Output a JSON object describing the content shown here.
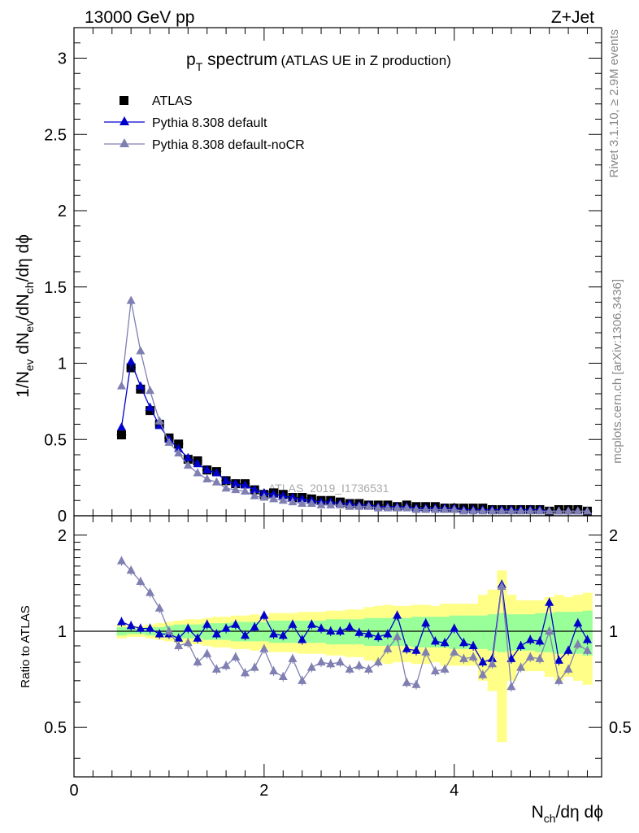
{
  "header": {
    "left": "13000 GeV pp",
    "right": "Z+Jet"
  },
  "side_labels": {
    "rivet": "Rivet 3.1.10, ≥ 2.9M events",
    "mcplots": "mcplots.cern.ch [arXiv:1306.3436]"
  },
  "watermark": "ATLAS_2019_I1736531",
  "colors": {
    "atlas": "#000000",
    "pythia_default": "#0000cc",
    "pythia_nocr": "#7f7fb2",
    "band_inner": "#99ff99",
    "band_outer": "#ffff88"
  },
  "chart_data": [
    {
      "type": "line",
      "title_main": "p",
      "title_sub": "T",
      "title_rest": " spectrum",
      "title_note": "(ATLAS UE in Z production)",
      "ylabel": {
        "p1": "1/N",
        "s1": "ev",
        "p2": " dN",
        "s2": "ev",
        "p3": "/dN",
        "s3": "ch",
        "p4": "/dη dϕ"
      },
      "xlim": [
        0,
        5.55
      ],
      "ylim": [
        0,
        3.2
      ],
      "yticks": [
        "0",
        "0.5",
        "1",
        "1.5",
        "2",
        "2.5",
        "3"
      ],
      "x": [
        0.5,
        0.6,
        0.7,
        0.8,
        0.9,
        1.0,
        1.1,
        1.2,
        1.3,
        1.4,
        1.5,
        1.6,
        1.7,
        1.8,
        1.9,
        2.0,
        2.1,
        2.2,
        2.3,
        2.4,
        2.5,
        2.6,
        2.7,
        2.8,
        2.9,
        3.0,
        3.1,
        3.2,
        3.3,
        3.4,
        3.5,
        3.6,
        3.7,
        3.8,
        3.9,
        4.0,
        4.1,
        4.2,
        4.3,
        4.4,
        4.5,
        4.6,
        4.7,
        4.8,
        4.9,
        5.0,
        5.1,
        5.2,
        5.3,
        5.4
      ],
      "series": [
        {
          "name": "ATLAS",
          "key": "atlas",
          "marker": "square",
          "values": [
            0.53,
            0.97,
            0.83,
            0.69,
            0.6,
            0.51,
            0.47,
            0.37,
            0.36,
            0.3,
            0.29,
            0.23,
            0.21,
            0.21,
            0.17,
            0.14,
            0.15,
            0.14,
            0.12,
            0.12,
            0.11,
            0.1,
            0.1,
            0.09,
            0.08,
            0.08,
            0.07,
            0.07,
            0.07,
            0.06,
            0.07,
            0.06,
            0.06,
            0.06,
            0.05,
            0.05,
            0.05,
            0.05,
            0.05,
            0.04,
            0.04,
            0.04,
            0.04,
            0.04,
            0.04,
            0.03,
            0.04,
            0.04,
            0.04,
            0.03
          ]
        },
        {
          "name": "Pythia 8.308 default",
          "key": "pythia_default",
          "marker": "triangle",
          "values": [
            0.58,
            1.01,
            0.85,
            0.71,
            0.59,
            0.5,
            0.44,
            0.38,
            0.34,
            0.3,
            0.28,
            0.23,
            0.21,
            0.2,
            0.17,
            0.15,
            0.14,
            0.13,
            0.12,
            0.11,
            0.1,
            0.09,
            0.09,
            0.08,
            0.08,
            0.07,
            0.07,
            0.06,
            0.06,
            0.06,
            0.06,
            0.05,
            0.05,
            0.05,
            0.05,
            0.05,
            0.04,
            0.04,
            0.04,
            0.04,
            0.04,
            0.04,
            0.04,
            0.04,
            0.04,
            0.03,
            0.03,
            0.03,
            0.03,
            0.03
          ]
        },
        {
          "name": "Pythia 8.308 default-noCR",
          "key": "pythia_nocr",
          "marker": "triangle",
          "values": [
            0.85,
            1.41,
            1.08,
            0.82,
            0.62,
            0.48,
            0.41,
            0.33,
            0.28,
            0.24,
            0.22,
            0.18,
            0.17,
            0.16,
            0.13,
            0.12,
            0.11,
            0.1,
            0.09,
            0.08,
            0.08,
            0.07,
            0.07,
            0.07,
            0.06,
            0.06,
            0.06,
            0.05,
            0.05,
            0.05,
            0.05,
            0.04,
            0.04,
            0.04,
            0.04,
            0.04,
            0.03,
            0.03,
            0.03,
            0.03,
            0.03,
            0.03,
            0.03,
            0.03,
            0.03,
            0.03,
            0.03,
            0.03,
            0.03,
            0.03
          ]
        }
      ],
      "legend": "top-left"
    },
    {
      "type": "line",
      "ylabel": "Ratio to ATLAS",
      "xlabel": {
        "p1": "N",
        "s1": "ch",
        "p2": "/dη dϕ"
      },
      "xlim": [
        0,
        5.55
      ],
      "ylim": [
        0.35,
        2.3
      ],
      "yticks": [
        "0.5",
        "1",
        "2"
      ],
      "xticks": [
        "0",
        "2",
        "4"
      ],
      "reference_line": 1,
      "x": [
        0.5,
        0.6,
        0.7,
        0.8,
        0.9,
        1.0,
        1.1,
        1.2,
        1.3,
        1.4,
        1.5,
        1.6,
        1.7,
        1.8,
        1.9,
        2.0,
        2.1,
        2.2,
        2.3,
        2.4,
        2.5,
        2.6,
        2.7,
        2.8,
        2.9,
        3.0,
        3.1,
        3.2,
        3.3,
        3.4,
        3.5,
        3.6,
        3.7,
        3.8,
        3.9,
        4.0,
        4.1,
        4.2,
        4.3,
        4.4,
        4.5,
        4.6,
        4.7,
        4.8,
        4.9,
        5.0,
        5.1,
        5.2,
        5.3,
        5.4
      ],
      "band_inner_half": [
        0.03,
        0.02,
        0.02,
        0.03,
        0.03,
        0.04,
        0.05,
        0.05,
        0.05,
        0.06,
        0.06,
        0.06,
        0.07,
        0.07,
        0.07,
        0.07,
        0.08,
        0.08,
        0.08,
        0.08,
        0.08,
        0.08,
        0.09,
        0.09,
        0.09,
        0.09,
        0.1,
        0.1,
        0.1,
        0.1,
        0.1,
        0.11,
        0.11,
        0.11,
        0.11,
        0.12,
        0.12,
        0.12,
        0.12,
        0.13,
        0.14,
        0.13,
        0.13,
        0.13,
        0.14,
        0.14,
        0.15,
        0.15,
        0.15,
        0.16
      ],
      "band_outer_half": [
        0.05,
        0.04,
        0.04,
        0.05,
        0.06,
        0.07,
        0.08,
        0.09,
        0.09,
        0.1,
        0.11,
        0.11,
        0.12,
        0.12,
        0.13,
        0.12,
        0.14,
        0.14,
        0.14,
        0.15,
        0.15,
        0.15,
        0.16,
        0.16,
        0.17,
        0.17,
        0.19,
        0.2,
        0.21,
        0.2,
        0.2,
        0.21,
        0.21,
        0.2,
        0.22,
        0.22,
        0.22,
        0.22,
        0.3,
        0.35,
        0.55,
        0.3,
        0.25,
        0.25,
        0.25,
        0.28,
        0.3,
        0.28,
        0.3,
        0.32
      ],
      "series": [
        {
          "name": "Pythia 8.308 default",
          "key": "pythia_default",
          "marker": "triangle",
          "values": [
            1.07,
            1.04,
            1.02,
            1.02,
            0.98,
            0.98,
            0.95,
            1.02,
            0.95,
            1.05,
            0.98,
            1.02,
            1.05,
            0.97,
            1.03,
            1.12,
            0.98,
            0.97,
            1.05,
            0.94,
            1.05,
            1.02,
            1.0,
            1.0,
            1.03,
            0.99,
            0.98,
            0.96,
            0.98,
            1.12,
            0.88,
            0.87,
            1.06,
            0.93,
            0.92,
            1.02,
            0.92,
            0.9,
            0.8,
            0.82,
            1.4,
            0.82,
            0.9,
            0.94,
            0.93,
            1.23,
            0.81,
            0.87,
            1.06,
            0.94
          ]
        },
        {
          "name": "Pythia 8.308 default-noCR",
          "key": "pythia_nocr",
          "marker": "triangle",
          "values": [
            1.66,
            1.55,
            1.43,
            1.32,
            1.18,
            1.0,
            0.9,
            0.92,
            0.8,
            0.85,
            0.76,
            0.78,
            0.83,
            0.74,
            0.77,
            0.88,
            0.75,
            0.72,
            0.82,
            0.7,
            0.77,
            0.8,
            0.79,
            0.8,
            0.76,
            0.78,
            0.76,
            0.8,
            0.88,
            0.96,
            0.69,
            0.68,
            0.86,
            0.75,
            0.76,
            0.86,
            0.82,
            0.83,
            0.73,
            0.79,
            1.38,
            0.67,
            0.77,
            0.83,
            0.82,
            1.0,
            0.7,
            0.76,
            0.91,
            0.87
          ]
        }
      ]
    }
  ]
}
